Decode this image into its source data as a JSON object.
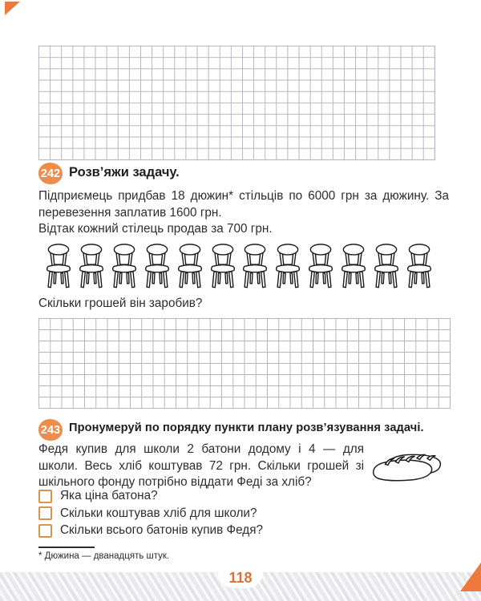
{
  "page": {
    "number": "118",
    "accent_color": "#ee8c4a",
    "page_number_color": "#df702e",
    "checkbox_border_color": "#d59552",
    "corner_triangle_color": "#ed7a3c"
  },
  "task242": {
    "badge": "242",
    "title": "Розв’яжи задачу.",
    "paragraph1": "Підприємець придбав 18 дюжин* стільців по 6000 грн за дюжину. За перевезення заплатив 1600 грн.",
    "paragraph2": "Відтак кожний стілець продав за 700 грн.",
    "chairs_count": 12,
    "question": "Скільки грошей він заробив?"
  },
  "task243": {
    "badge": "243",
    "title": "Пронумеруй по порядку пункти плану розв’язування задачі.",
    "paragraph": "Федя купив для школи 2 батони додому і 4 — для школи. Весь хліб коштував 72 грн. Скільки грошей зі шкільного фонду потрібно віддати Феді за хліб?",
    "checklist": [
      "Яка ціна батона?",
      "Скільки коштував хліб для школи?",
      "Скільки всього батонів купив Федя?"
    ]
  },
  "footnote": {
    "text": "* Дюжина — дванадцять штук."
  }
}
